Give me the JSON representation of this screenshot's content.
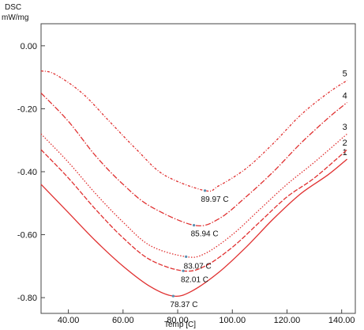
{
  "chart_data": {
    "type": "line",
    "ylabel_top": "DSC",
    "ylabel_units": "mW/mg",
    "xlabel": "Temp [C]",
    "xlim": [
      30,
      145
    ],
    "ylim": [
      -0.85,
      0.07
    ],
    "xticks": [
      40,
      60,
      80,
      100,
      120,
      140
    ],
    "xtick_labels": [
      "40.00",
      "60.00",
      "80.00",
      "100.00",
      "120.00",
      "140.00"
    ],
    "yticks": [
      0,
      -0.2,
      -0.4,
      -0.6,
      -0.8
    ],
    "ytick_labels": [
      "0.00",
      "-0.20",
      "-0.40",
      "-0.60",
      "-0.80"
    ],
    "grid": false,
    "curve_color": "#e03030",
    "series": [
      {
        "name": "1",
        "peak_label": "78.37 C",
        "points": [
          [
            30,
            -0.44
          ],
          [
            40,
            -0.53
          ],
          [
            50,
            -0.62
          ],
          [
            60,
            -0.7
          ],
          [
            70,
            -0.765
          ],
          [
            78.37,
            -0.795
          ],
          [
            85,
            -0.78
          ],
          [
            95,
            -0.72
          ],
          [
            105,
            -0.64
          ],
          [
            115,
            -0.55
          ],
          [
            125,
            -0.47
          ],
          [
            135,
            -0.41
          ],
          [
            142,
            -0.36
          ]
        ]
      },
      {
        "name": "2",
        "peak_label": "82.01 C",
        "points": [
          [
            30,
            -0.33
          ],
          [
            40,
            -0.42
          ],
          [
            50,
            -0.52
          ],
          [
            60,
            -0.61
          ],
          [
            70,
            -0.68
          ],
          [
            82.01,
            -0.715
          ],
          [
            90,
            -0.7
          ],
          [
            100,
            -0.64
          ],
          [
            110,
            -0.56
          ],
          [
            120,
            -0.48
          ],
          [
            130,
            -0.42
          ],
          [
            142,
            -0.33
          ]
        ]
      },
      {
        "name": "3",
        "peak_label": "83.07 C",
        "points": [
          [
            30,
            -0.28
          ],
          [
            40,
            -0.37
          ],
          [
            50,
            -0.47
          ],
          [
            60,
            -0.56
          ],
          [
            70,
            -0.635
          ],
          [
            83.07,
            -0.67
          ],
          [
            90,
            -0.66
          ],
          [
            100,
            -0.6
          ],
          [
            110,
            -0.52
          ],
          [
            120,
            -0.44
          ],
          [
            130,
            -0.37
          ],
          [
            142,
            -0.28
          ]
        ]
      },
      {
        "name": "4",
        "peak_label": "85.94 C",
        "points": [
          [
            30,
            -0.15
          ],
          [
            40,
            -0.24
          ],
          [
            50,
            -0.35
          ],
          [
            60,
            -0.44
          ],
          [
            70,
            -0.51
          ],
          [
            85.94,
            -0.57
          ],
          [
            95,
            -0.55
          ],
          [
            105,
            -0.48
          ],
          [
            115,
            -0.4
          ],
          [
            125,
            -0.31
          ],
          [
            135,
            -0.23
          ],
          [
            142,
            -0.18
          ]
        ]
      },
      {
        "name": "5",
        "peak_label": "89.97 C",
        "points": [
          [
            30,
            -0.08
          ],
          [
            35,
            -0.09
          ],
          [
            45,
            -0.15
          ],
          [
            55,
            -0.24
          ],
          [
            65,
            -0.33
          ],
          [
            75,
            -0.41
          ],
          [
            89.97,
            -0.46
          ],
          [
            95,
            -0.445
          ],
          [
            105,
            -0.39
          ],
          [
            115,
            -0.31
          ],
          [
            125,
            -0.22
          ],
          [
            135,
            -0.15
          ],
          [
            142,
            -0.11
          ]
        ]
      }
    ]
  }
}
